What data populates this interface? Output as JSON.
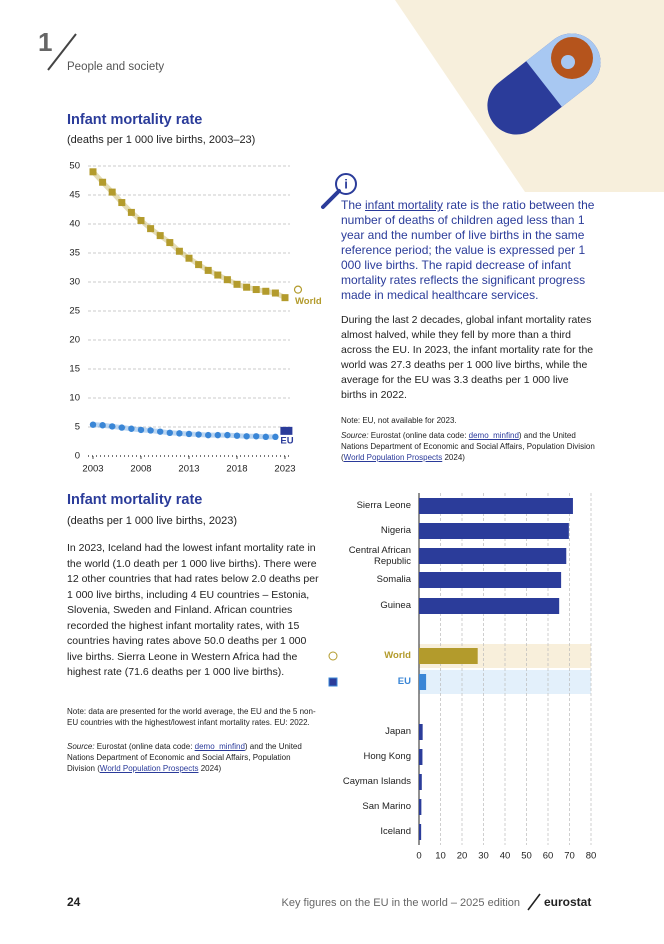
{
  "header": {
    "chapter": "1",
    "section": "People and society"
  },
  "chart_data": [
    {
      "type": "line",
      "title": "Infant mortality rate",
      "subtitle": "(deaths per 1 000 live births, 2003–23)",
      "x": [
        2003,
        2004,
        2005,
        2006,
        2007,
        2008,
        2009,
        2010,
        2011,
        2012,
        2013,
        2014,
        2015,
        2016,
        2017,
        2018,
        2019,
        2020,
        2021,
        2022,
        2023
      ],
      "series": [
        {
          "name": "World",
          "color": "#b39b2c",
          "marker": "square",
          "values": [
            49.0,
            47.2,
            45.5,
            43.7,
            42.0,
            40.6,
            39.2,
            38.0,
            36.8,
            35.3,
            34.1,
            33.0,
            32.0,
            31.2,
            30.4,
            29.6,
            29.1,
            28.7,
            28.4,
            28.1,
            27.3
          ]
        },
        {
          "name": "EU",
          "color": "#3a86d6",
          "marker": "circle",
          "values": [
            5.4,
            5.3,
            5.1,
            4.9,
            4.7,
            4.5,
            4.4,
            4.2,
            4.0,
            3.9,
            3.8,
            3.7,
            3.6,
            3.6,
            3.6,
            3.5,
            3.4,
            3.4,
            3.3,
            3.3,
            null
          ]
        }
      ],
      "xlim": [
        2003,
        2023
      ],
      "xticks": [
        2003,
        2008,
        2013,
        2018,
        2023
      ],
      "ylim": [
        0,
        50
      ],
      "yticks": [
        0,
        5,
        10,
        15,
        20,
        25,
        30,
        35,
        40,
        45,
        50
      ],
      "grid": true
    },
    {
      "type": "bar",
      "orientation": "horizontal",
      "title": "Infant mortality rate",
      "subtitle": "(deaths per 1 000 live births, 2023)",
      "categories": [
        "Sierra Leone",
        "Nigeria",
        "Central African Republic",
        "Somalia",
        "Guinea",
        "World",
        "EU",
        "Japan",
        "Hong Kong",
        "Cayman Islands",
        "San Marino",
        "Iceland"
      ],
      "values": [
        71.6,
        69.7,
        68.5,
        66.1,
        65.2,
        27.3,
        3.3,
        1.7,
        1.6,
        1.3,
        1.1,
        1.0
      ],
      "colors": [
        "#2b3c9a",
        "#2b3c9a",
        "#2b3c9a",
        "#2b3c9a",
        "#2b3c9a",
        "#b39b2c",
        "#3a86d6",
        "#2b3c9a",
        "#2b3c9a",
        "#2b3c9a",
        "#2b3c9a",
        "#2b3c9a"
      ],
      "xlim": [
        0,
        80
      ],
      "xticks": [
        0,
        10,
        20,
        30,
        40,
        50,
        60,
        70,
        80
      ],
      "grid": true
    }
  ],
  "info_box": {
    "parts": [
      "The ",
      "infant mortality",
      " rate is the ratio between the number of deaths of children aged less than 1 year and the number of live births in the same reference period; the value is expressed per 1 000 live births. The rapid decrease of infant mortality rates reflects the significant progress made in medical healthcare services."
    ]
  },
  "text_1": "During the last 2 decades, global infant mortality rates almost halved, while they fell by more than a third across the EU. In 2023, the infant mortality rate for the world was 27.3 deaths per 1 000 live births, while the average for the EU was 3.3 deaths per 1 000 live births in 2022.",
  "note_1": "Note: EU, not available for 2023.",
  "source_1": [
    "Source:",
    " Eurostat (online data code: ",
    "demo_minfind",
    ") and the United Nations Department of Economic and Social Affairs, Population Division (",
    "World Population Prospects",
    " 2024)"
  ],
  "text_2": "In 2023, Iceland had the lowest infant mortality rate in the world (1.0 death per 1 000 live births). There were 12 other countries that had rates below 2.0 deaths per 1 000 live births, including 4 EU countries – Estonia, Slovenia, Sweden and Finland. African countries recorded the highest infant mortality rates, with 15 countries having rates above 50.0 deaths per 1 000 live births. Sierra Leone in Western Africa had the highest rate (71.6 deaths per 1 000 live births).",
  "note_2": "Note: data are presented for the world average, the EU and the 5 non-EU countries with the highest/lowest infant mortality rates. EU: 2022.",
  "source_2": [
    "Source:",
    " Eurostat (online data code: ",
    "demo_minfind",
    ") and the United Nations Department of Economic and Social Affairs, Population Division (",
    "World Population Prospects",
    " 2024)"
  ],
  "footer": {
    "page": "24",
    "publication": "Key figures on the EU in the world – 2025 edition",
    "brand": "eurostat"
  }
}
